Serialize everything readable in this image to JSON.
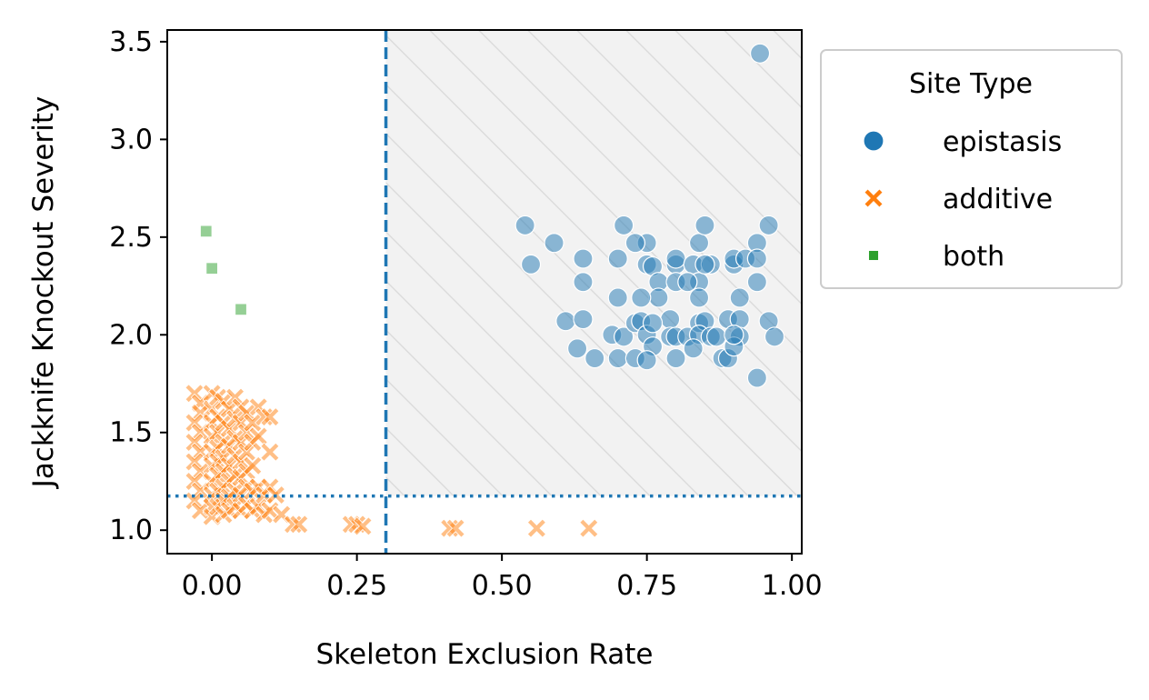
{
  "chart_data": {
    "type": "scatter",
    "xlabel": "Skeleton Exclusion Rate",
    "ylabel": "Jackknife Knockout Severity",
    "xlim": [
      -0.077,
      1.017
    ],
    "ylim": [
      0.88,
      3.56
    ],
    "xticks": [
      "0.00",
      "0.25",
      "0.50",
      "0.75",
      "1.00"
    ],
    "xtick_values": [
      0,
      0.25,
      0.5,
      0.75,
      1.0
    ],
    "yticks": [
      "1.0",
      "1.5",
      "2.0",
      "2.5",
      "3.0",
      "3.5"
    ],
    "ytick_values": [
      1.0,
      1.5,
      2.0,
      2.5,
      3.0,
      3.5
    ],
    "grid": false,
    "threshold_x": 0.3,
    "threshold_y": 1.175,
    "shaded_region": "x >= 0.30, y >= 1.175",
    "legend": {
      "title": "Site Type",
      "placement": "outside-right-top",
      "entries": [
        {
          "label": "epistasis",
          "marker": "circle",
          "color": "#1f77b4"
        },
        {
          "label": "additive",
          "marker": "x",
          "color": "#ff7f0e"
        },
        {
          "label": "both",
          "marker": "square",
          "color": "#2ca02c"
        }
      ]
    },
    "series": [
      {
        "name": "epistasis",
        "marker": "circle",
        "color": "#1f77b4",
        "points": [
          [
            0.945,
            3.44
          ],
          [
            0.54,
            2.56
          ],
          [
            0.59,
            2.47
          ],
          [
            0.55,
            2.36
          ],
          [
            0.64,
            2.39
          ],
          [
            0.64,
            2.27
          ],
          [
            0.61,
            2.07
          ],
          [
            0.64,
            2.08
          ],
          [
            0.63,
            1.93
          ],
          [
            0.66,
            1.88
          ],
          [
            0.71,
            2.56
          ],
          [
            0.7,
            2.39
          ],
          [
            0.7,
            2.19
          ],
          [
            0.69,
            2.0
          ],
          [
            0.71,
            1.99
          ],
          [
            0.7,
            1.88
          ],
          [
            0.73,
            2.06
          ],
          [
            0.73,
            1.88
          ],
          [
            0.75,
            2.47
          ],
          [
            0.75,
            2.36
          ],
          [
            0.76,
            2.35
          ],
          [
            0.77,
            2.27
          ],
          [
            0.77,
            2.19
          ],
          [
            0.74,
            2.19
          ],
          [
            0.74,
            2.07
          ],
          [
            0.75,
            2.0
          ],
          [
            0.76,
            1.94
          ],
          [
            0.75,
            1.87
          ],
          [
            0.79,
            2.08
          ],
          [
            0.79,
            1.99
          ],
          [
            0.8,
            2.36
          ],
          [
            0.8,
            2.39
          ],
          [
            0.8,
            2.27
          ],
          [
            0.8,
            1.88
          ],
          [
            0.8,
            1.99
          ],
          [
            0.82,
            1.99
          ],
          [
            0.83,
            2.36
          ],
          [
            0.84,
            2.47
          ],
          [
            0.85,
            2.56
          ],
          [
            0.84,
            2.27
          ],
          [
            0.84,
            2.19
          ],
          [
            0.84,
            2.06
          ],
          [
            0.85,
            2.07
          ],
          [
            0.84,
            2.0
          ],
          [
            0.83,
            1.93
          ],
          [
            0.86,
            1.99
          ],
          [
            0.87,
            1.99
          ],
          [
            0.86,
            2.36
          ],
          [
            0.88,
            1.88
          ],
          [
            0.89,
            1.88
          ],
          [
            0.89,
            2.08
          ],
          [
            0.9,
            2.36
          ],
          [
            0.9,
            2.39
          ],
          [
            0.91,
            2.19
          ],
          [
            0.91,
            2.08
          ],
          [
            0.91,
            1.99
          ],
          [
            0.9,
            1.94
          ],
          [
            0.92,
            2.39
          ],
          [
            0.94,
            2.47
          ],
          [
            0.94,
            2.39
          ],
          [
            0.94,
            2.27
          ],
          [
            0.96,
            2.56
          ],
          [
            0.96,
            2.07
          ],
          [
            0.97,
            1.99
          ],
          [
            0.94,
            1.78
          ],
          [
            0.85,
            2.36
          ],
          [
            0.82,
            2.27
          ],
          [
            0.76,
            2.06
          ],
          [
            0.73,
            2.47
          ],
          [
            0.9,
            2.0
          ]
        ]
      },
      {
        "name": "additive",
        "marker": "x",
        "color": "#ff7f0e",
        "points": [
          [
            -0.03,
            1.7
          ],
          [
            -0.02,
            1.65
          ],
          [
            -0.02,
            1.6
          ],
          [
            -0.03,
            1.55
          ],
          [
            -0.02,
            1.5
          ],
          [
            -0.03,
            1.45
          ],
          [
            -0.02,
            1.4
          ],
          [
            -0.03,
            1.35
          ],
          [
            -0.02,
            1.3
          ],
          [
            -0.03,
            1.25
          ],
          [
            -0.02,
            1.2
          ],
          [
            -0.03,
            1.15
          ],
          [
            -0.02,
            1.1
          ],
          [
            0.0,
            1.7
          ],
          [
            0.0,
            1.62
          ],
          [
            0.0,
            1.55
          ],
          [
            0.0,
            1.48
          ],
          [
            0.0,
            1.4
          ],
          [
            0.0,
            1.33
          ],
          [
            0.0,
            1.25
          ],
          [
            0.0,
            1.18
          ],
          [
            0.0,
            1.12
          ],
          [
            0.0,
            1.07
          ],
          [
            0.01,
            1.68
          ],
          [
            0.01,
            1.58
          ],
          [
            0.01,
            1.5
          ],
          [
            0.01,
            1.42
          ],
          [
            0.01,
            1.35
          ],
          [
            0.01,
            1.28
          ],
          [
            0.01,
            1.2
          ],
          [
            0.01,
            1.12
          ],
          [
            0.02,
            1.66
          ],
          [
            0.02,
            1.55
          ],
          [
            0.02,
            1.45
          ],
          [
            0.02,
            1.37
          ],
          [
            0.02,
            1.3
          ],
          [
            0.02,
            1.22
          ],
          [
            0.02,
            1.15
          ],
          [
            0.02,
            1.08
          ],
          [
            0.03,
            1.62
          ],
          [
            0.03,
            1.52
          ],
          [
            0.03,
            1.43
          ],
          [
            0.03,
            1.33
          ],
          [
            0.03,
            1.25
          ],
          [
            0.03,
            1.17
          ],
          [
            0.03,
            1.1
          ],
          [
            0.04,
            1.68
          ],
          [
            0.04,
            1.57
          ],
          [
            0.04,
            1.47
          ],
          [
            0.04,
            1.38
          ],
          [
            0.04,
            1.28
          ],
          [
            0.04,
            1.2
          ],
          [
            0.04,
            1.12
          ],
          [
            0.05,
            1.63
          ],
          [
            0.05,
            1.55
          ],
          [
            0.05,
            1.45
          ],
          [
            0.05,
            1.35
          ],
          [
            0.05,
            1.27
          ],
          [
            0.05,
            1.18
          ],
          [
            0.05,
            1.1
          ],
          [
            0.06,
            1.6
          ],
          [
            0.06,
            1.5
          ],
          [
            0.06,
            1.4
          ],
          [
            0.06,
            1.3
          ],
          [
            0.06,
            1.22
          ],
          [
            0.06,
            1.13
          ],
          [
            0.07,
            1.55
          ],
          [
            0.07,
            1.45
          ],
          [
            0.07,
            1.33
          ],
          [
            0.07,
            1.2
          ],
          [
            0.07,
            1.1
          ],
          [
            0.08,
            1.63
          ],
          [
            0.08,
            1.48
          ],
          [
            0.08,
            1.22
          ],
          [
            0.08,
            1.12
          ],
          [
            0.09,
            1.58
          ],
          [
            0.09,
            1.18
          ],
          [
            0.09,
            1.08
          ],
          [
            0.1,
            1.58
          ],
          [
            0.1,
            1.4
          ],
          [
            0.1,
            1.22
          ],
          [
            0.1,
            1.1
          ],
          [
            0.11,
            1.18
          ],
          [
            0.12,
            1.08
          ],
          [
            0.14,
            1.03
          ],
          [
            0.15,
            1.03
          ],
          [
            0.24,
            1.03
          ],
          [
            0.25,
            1.03
          ],
          [
            0.26,
            1.02
          ],
          [
            0.41,
            1.01
          ],
          [
            0.42,
            1.01
          ],
          [
            0.56,
            1.01
          ],
          [
            0.65,
            1.01
          ]
        ]
      },
      {
        "name": "both",
        "marker": "square",
        "color": "#2ca02c",
        "points": [
          [
            -0.01,
            2.53
          ],
          [
            0.0,
            2.34
          ],
          [
            0.05,
            2.13
          ]
        ]
      }
    ]
  }
}
